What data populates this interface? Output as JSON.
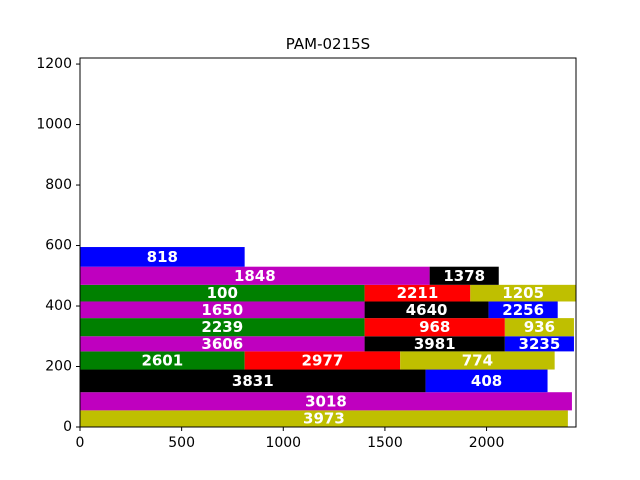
{
  "chart_data": {
    "type": "bar",
    "orientation": "horizontal-stacked",
    "title": "PAM-0215S",
    "xlabel": "",
    "ylabel": "",
    "xlim": [
      0,
      2440
    ],
    "ylim": [
      0,
      1220
    ],
    "xticks": [
      0,
      500,
      1000,
      1500,
      2000
    ],
    "yticks": [
      0,
      200,
      400,
      600,
      800,
      1000,
      1200
    ],
    "grid": false,
    "colors": {
      "y": "#bfbf00",
      "m": "#bf00bf",
      "k": "#000000",
      "g": "#008000",
      "r": "#ff0000",
      "b": "#0000ff"
    },
    "bars": [
      {
        "x0": 0,
        "x1": 2400,
        "y0": 0,
        "y1": 55,
        "color": "y",
        "label": "3973"
      },
      {
        "x0": 0,
        "x1": 2420,
        "y0": 55,
        "y1": 115,
        "color": "m",
        "label": "3018"
      },
      {
        "x0": 0,
        "x1": 1700,
        "y0": 115,
        "y1": 190,
        "color": "k",
        "label": "3831"
      },
      {
        "x0": 1700,
        "x1": 2300,
        "y0": 115,
        "y1": 190,
        "color": "b",
        "label": "408"
      },
      {
        "x0": 0,
        "x1": 810,
        "y0": 190,
        "y1": 250,
        "color": "g",
        "label": "2601"
      },
      {
        "x0": 810,
        "x1": 1575,
        "y0": 190,
        "y1": 250,
        "color": "r",
        "label": "2977"
      },
      {
        "x0": 1575,
        "x1": 2335,
        "y0": 190,
        "y1": 250,
        "color": "y",
        "label": "774"
      },
      {
        "x0": 0,
        "x1": 1400,
        "y0": 250,
        "y1": 300,
        "color": "m",
        "label": "3606"
      },
      {
        "x0": 1400,
        "x1": 2090,
        "y0": 250,
        "y1": 300,
        "color": "k",
        "label": "3981"
      },
      {
        "x0": 2090,
        "x1": 2430,
        "y0": 250,
        "y1": 300,
        "color": "b",
        "label": "3235"
      },
      {
        "x0": 0,
        "x1": 1400,
        "y0": 300,
        "y1": 360,
        "color": "g",
        "label": "2239"
      },
      {
        "x0": 1400,
        "x1": 2090,
        "y0": 300,
        "y1": 360,
        "color": "r",
        "label": "968"
      },
      {
        "x0": 2090,
        "x1": 2430,
        "y0": 300,
        "y1": 360,
        "color": "y",
        "label": "936"
      },
      {
        "x0": 0,
        "x1": 1400,
        "y0": 360,
        "y1": 415,
        "color": "m",
        "label": "1650"
      },
      {
        "x0": 1400,
        "x1": 2010,
        "y0": 360,
        "y1": 415,
        "color": "k",
        "label": "4640"
      },
      {
        "x0": 2010,
        "x1": 2350,
        "y0": 360,
        "y1": 415,
        "color": "b",
        "label": "2256"
      },
      {
        "x0": 0,
        "x1": 1400,
        "y0": 415,
        "y1": 470,
        "color": "g",
        "label": "100"
      },
      {
        "x0": 1400,
        "x1": 1920,
        "y0": 415,
        "y1": 470,
        "color": "r",
        "label": "2211"
      },
      {
        "x0": 1920,
        "x1": 2440,
        "y0": 415,
        "y1": 470,
        "color": "y",
        "label": "1205"
      },
      {
        "x0": 0,
        "x1": 1720,
        "y0": 470,
        "y1": 530,
        "color": "m",
        "label": "1848"
      },
      {
        "x0": 1720,
        "x1": 2060,
        "y0": 470,
        "y1": 530,
        "color": "k",
        "label": "1378"
      },
      {
        "x0": 0,
        "x1": 810,
        "y0": 530,
        "y1": 595,
        "color": "b",
        "label": "818"
      }
    ]
  }
}
